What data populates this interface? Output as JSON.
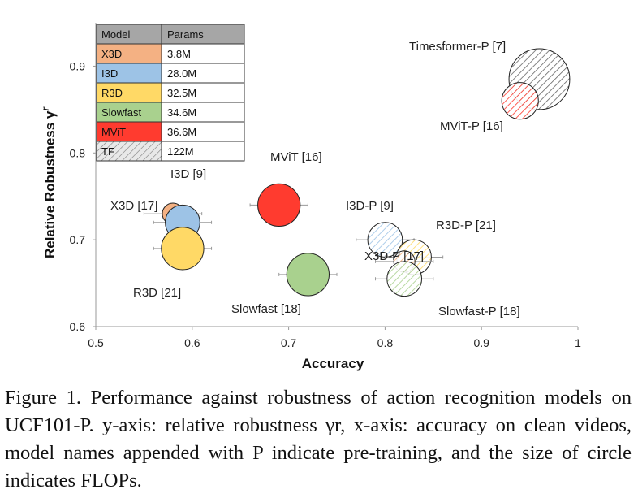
{
  "chart_data": {
    "type": "scatter",
    "title": "",
    "xlabel": "Accuracy",
    "ylabel": "Relative Robustness γ",
    "ylabel_sup": "r",
    "xlim": [
      0.5,
      1.0
    ],
    "ylim": [
      0.6,
      0.95
    ],
    "xticks": [
      0.5,
      0.6,
      0.7,
      0.8,
      0.9,
      1.0
    ],
    "xtick_labels": [
      "0.5",
      "0.6",
      "0.7",
      "0.8",
      "0.9",
      "1"
    ],
    "yticks": [
      0.6,
      0.7,
      0.8,
      0.9
    ],
    "ytick_labels": [
      "0.6",
      "0.7",
      "0.8",
      "0.9"
    ],
    "grid": false,
    "legend_position": "top-left",
    "legend_headers": [
      "Model",
      "Params"
    ],
    "legend": [
      {
        "name": "X3D",
        "params": "3.8M",
        "color": "#f4b183",
        "pattern": false
      },
      {
        "name": "I3D",
        "params": "28.0M",
        "color": "#9dc3e6",
        "pattern": false
      },
      {
        "name": "R3D",
        "params": "32.5M",
        "color": "#ffd966",
        "pattern": false
      },
      {
        "name": "Slowfast",
        "params": "34.6M",
        "color": "#a9d18e",
        "pattern": false
      },
      {
        "name": "MViT",
        "params": "36.6M",
        "color": "#ff3b2f",
        "pattern": false
      },
      {
        "name": "TF",
        "params": "122M",
        "color": "#888888",
        "pattern": true
      }
    ],
    "points": [
      {
        "label": "X3D [17]",
        "model": "X3D",
        "pretrained": false,
        "x": 0.58,
        "y": 0.73,
        "size": 0.22,
        "xerr": 0.03
      },
      {
        "label": "I3D [9]",
        "model": "I3D",
        "pretrained": false,
        "x": 0.59,
        "y": 0.72,
        "size": 0.36,
        "xerr": 0.03
      },
      {
        "label": "R3D [21]",
        "model": "R3D",
        "pretrained": false,
        "x": 0.59,
        "y": 0.69,
        "size": 0.44,
        "xerr": 0.03
      },
      {
        "label": "MViT [16]",
        "model": "MViT",
        "pretrained": false,
        "x": 0.69,
        "y": 0.74,
        "size": 0.44,
        "xerr": 0.03
      },
      {
        "label": "Slowfast [18]",
        "model": "Slowfast",
        "pretrained": false,
        "x": 0.72,
        "y": 0.66,
        "size": 0.44,
        "xerr": 0.03
      },
      {
        "label": "I3D-P [9]",
        "model": "I3D",
        "pretrained": true,
        "x": 0.8,
        "y": 0.7,
        "size": 0.36,
        "xerr": 0.03
      },
      {
        "label": "R3D-P [21]",
        "model": "R3D",
        "pretrained": true,
        "x": 0.83,
        "y": 0.68,
        "size": 0.36,
        "xerr": 0.03
      },
      {
        "label": "X3D-P [17]",
        "model": "X3D",
        "pretrained": true,
        "x": 0.82,
        "y": 0.675,
        "size": 0.22,
        "xerr": 0.03
      },
      {
        "label": "Slowfast-P [18]",
        "model": "Slowfast",
        "pretrained": true,
        "x": 0.82,
        "y": 0.655,
        "size": 0.36,
        "xerr": 0.03
      },
      {
        "label": "Timesformer-P [7]",
        "model": "TF",
        "pretrained": true,
        "x": 0.96,
        "y": 0.885,
        "size": 0.63,
        "xerr": 0.0
      },
      {
        "label": "MViT-P [16]",
        "model": "MViT",
        "pretrained": true,
        "x": 0.94,
        "y": 0.86,
        "size": 0.38,
        "xerr": 0.0
      }
    ]
  },
  "caption": "Figure 1. Performance against robustness of action recognition models on UCF101-P. y-axis: relative robustness γr, x-axis: accuracy on clean videos, model names appended with P indicate pre-training, and the size of circle indicates FLOPs."
}
